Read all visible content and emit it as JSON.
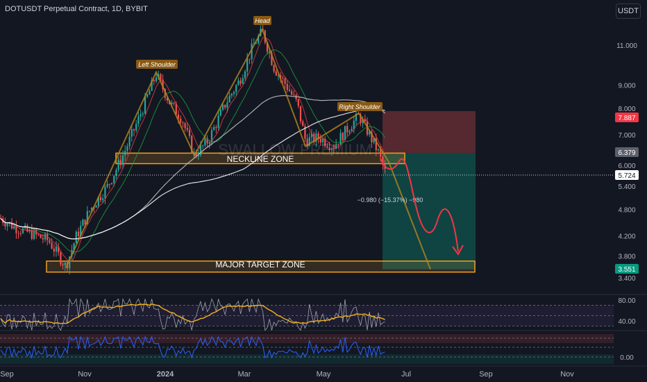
{
  "header": {
    "title": "DOTUSDT Perpetual Contract, 1D, BYBIT",
    "currency_button": "USDT"
  },
  "annotations": {
    "head": "Head",
    "left_shoulder": "Left Shoulder",
    "right_shoulder": "Right Shoulder",
    "neckline_zone": "NECKLINE ZONE",
    "major_target_zone": "MAJOR TARGET ZONE",
    "measure": "−0.980 (−15.37%) −980",
    "watermark": "SWALLOW PREMIUM"
  },
  "price_badges": {
    "stop": "7.887",
    "entry": "6.379",
    "current": "5.724",
    "target": "3.551"
  },
  "colors": {
    "background": "#131722",
    "bull": "#26a69a",
    "bear": "#ef5350",
    "zone": "#f0a21f",
    "stop_zone": "#ef5350",
    "target_zone": "#089981",
    "pattern": "#b8861b",
    "rsi": "#7e57c2",
    "rsi_ma": "#f5b31a",
    "osc": "#2962ff",
    "projection": "#f23645"
  },
  "chart_data": [
    {
      "type": "candlestick",
      "scale": "log",
      "y_axis_ticks": [
        "11.000",
        "9.000",
        "8.000",
        "7.000",
        "6.000",
        "5.400",
        "4.800",
        "4.200",
        "3.800",
        "3.400"
      ],
      "x_axis_ticks": [
        "Sep",
        "Nov",
        "2024",
        "Mar",
        "May",
        "Jul",
        "Sep",
        "Nov"
      ],
      "ylim": [
        3.2,
        13.5
      ],
      "pattern_points": [
        {
          "label": "Left Shoulder",
          "price": 9.5
        },
        {
          "label": "Head",
          "price": 11.8
        },
        {
          "label": "Right Shoulder",
          "price": 7.75
        }
      ],
      "zones": [
        {
          "name": "NECKLINE ZONE",
          "from": 6.05,
          "to": 6.379
        },
        {
          "name": "MAJOR TARGET ZONE",
          "from": 3.5,
          "to": 3.7
        }
      ],
      "position": {
        "stop": 7.887,
        "entry": 6.379,
        "target": 3.551,
        "current": 5.724
      },
      "measure": {
        "change": -0.98,
        "percent": -15.37,
        "ticks": -980
      }
    },
    {
      "type": "line",
      "name_printed": "",
      "y_axis_ticks": [
        "80.00",
        "40.00"
      ],
      "ylim": [
        0,
        100
      ],
      "bands": [
        30,
        50,
        70
      ]
    },
    {
      "type": "line",
      "y_axis_ticks": [
        "0.00"
      ]
    }
  ]
}
